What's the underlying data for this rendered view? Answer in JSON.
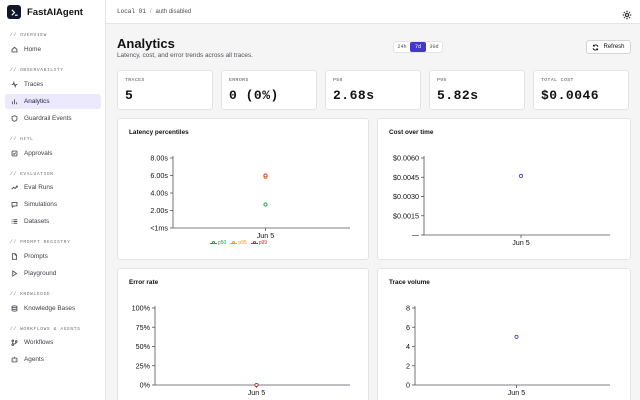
{
  "app": {
    "name": "FastAIAgent"
  },
  "topbar": {
    "env": "Local 01",
    "separator": "/",
    "auth": "auth disabled"
  },
  "sidebar": {
    "sections": [
      {
        "title": "// OVERVIEW",
        "items": [
          {
            "label": "Home",
            "icon": "home-icon",
            "active": false
          }
        ]
      },
      {
        "title": "// OBSERVABILITY",
        "items": [
          {
            "label": "Traces",
            "icon": "activity-icon",
            "active": false
          },
          {
            "label": "Analytics",
            "icon": "bar-chart-icon",
            "active": true
          },
          {
            "label": "Guardrail Events",
            "icon": "shield-icon",
            "active": false
          }
        ]
      },
      {
        "title": "// HITL",
        "items": [
          {
            "label": "Approvals",
            "icon": "check-square-icon",
            "active": false
          }
        ]
      },
      {
        "title": "// EVALUATION",
        "items": [
          {
            "label": "Eval Runs",
            "icon": "trending-up-icon",
            "active": false
          },
          {
            "label": "Simulations",
            "icon": "message-icon",
            "active": false
          },
          {
            "label": "Datasets",
            "icon": "list-icon",
            "active": false
          }
        ]
      },
      {
        "title": "// PROMPT REGISTRY",
        "items": [
          {
            "label": "Prompts",
            "icon": "file-icon",
            "active": false
          },
          {
            "label": "Playground",
            "icon": "play-icon",
            "active": false
          }
        ]
      },
      {
        "title": "// KNOWLEDGE",
        "items": [
          {
            "label": "Knowledge Bases",
            "icon": "database-icon",
            "active": false
          }
        ]
      },
      {
        "title": "// WORKFLOWS & AGENTS",
        "items": [
          {
            "label": "Workflows",
            "icon": "workflow-icon",
            "active": false
          },
          {
            "label": "Agents",
            "icon": "bot-icon",
            "active": false
          }
        ]
      }
    ]
  },
  "header": {
    "title": "Analytics",
    "subtitle": "Latency, cost, and error trends across all traces.",
    "ranges": [
      "24h",
      "7d",
      "30d"
    ],
    "active_range": "7d",
    "refresh_label": "Refresh"
  },
  "stats": [
    {
      "label": "TRACES",
      "value": "5"
    },
    {
      "label": "ERRORS",
      "value": "0 (0%)"
    },
    {
      "label": "P50",
      "value": "2.68s"
    },
    {
      "label": "P95",
      "value": "5.82s"
    },
    {
      "label": "TOTAL COST",
      "value": "$0.0046"
    }
  ],
  "colors": {
    "accent": "#4338ca",
    "p50": "#16a34a",
    "p95": "#f59e0b",
    "p99": "#dc2626",
    "cost": "#4f46e5",
    "volume": "#4f46e5",
    "error": "#dc2626"
  },
  "chart_data": [
    {
      "type": "line",
      "title": "Latency percentiles",
      "x": [
        "Jun 5"
      ],
      "y_ticks": [
        "8.00s",
        "6.00s",
        "4.00s",
        "2.00s",
        "<1ms"
      ],
      "ylim": [
        0,
        8
      ],
      "series": [
        {
          "name": "p50",
          "values": [
            2.68
          ]
        },
        {
          "name": "p95",
          "values": [
            5.82
          ]
        },
        {
          "name": "p99",
          "values": [
            6.0
          ]
        }
      ],
      "legend": "bottom"
    },
    {
      "type": "line",
      "title": "Cost over time",
      "x": [
        "Jun 5"
      ],
      "y_ticks": [
        "$0.0060",
        "$0.0045",
        "$0.0030",
        "$0.0015",
        "—"
      ],
      "ylim": [
        0,
        0.006
      ],
      "series": [
        {
          "name": "",
          "values": [
            0.0046
          ]
        }
      ]
    },
    {
      "type": "line",
      "title": "Error rate",
      "x": [
        "Jun 5"
      ],
      "y_ticks": [
        "100%",
        "75%",
        "50%",
        "25%",
        "0%"
      ],
      "ylim": [
        0,
        100
      ],
      "series": [
        {
          "name": "",
          "values": [
            0
          ]
        }
      ]
    },
    {
      "type": "line",
      "title": "Trace volume",
      "x": [
        "Jun 5"
      ],
      "y_ticks": [
        "8",
        "6",
        "4",
        "2",
        "0"
      ],
      "ylim": [
        0,
        8
      ],
      "series": [
        {
          "name": "",
          "values": [
            5
          ]
        }
      ]
    }
  ]
}
